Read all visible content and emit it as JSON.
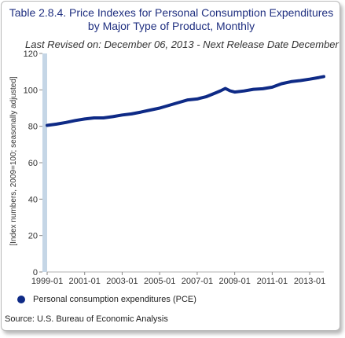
{
  "title": "Table 2.8.4. Price Indexes for Personal Consumption Expenditures by Major Type of Product, Monthly",
  "subtitle": "Last Revised on: December 06, 2013 - Next Release Date December",
  "source": "Source: U.S. Bureau of Economic Analysis",
  "colors": {
    "series": "#0e2a86",
    "axis_band": "#c5d6e6",
    "grid": "#dddddd",
    "title": "#1f2f80"
  },
  "chart_data": {
    "type": "line",
    "title": "Table 2.8.4. Price Indexes for Personal Consumption Expenditures by Major Type of Product, Monthly",
    "ylabel": "[Index numbers, 2009=100; seasonally adjusted]",
    "xlabel": "",
    "ylim": [
      0,
      120
    ],
    "xlim": [
      "1999-01",
      "2013-10"
    ],
    "yticks": [
      "0",
      "20",
      "40",
      "60",
      "80",
      "100",
      "120"
    ],
    "xticks": [
      "1999-01",
      "2001-01",
      "2003-01",
      "2005-01",
      "2007-01",
      "2009-01",
      "2011-01",
      "2013-01"
    ],
    "legend_position": "bottom-left",
    "grid": false,
    "series": [
      {
        "name": "Personal consumption expenditures (PCE)",
        "x": [
          "1999-01",
          "1999-07",
          "2000-01",
          "2000-07",
          "2001-01",
          "2001-07",
          "2002-01",
          "2002-07",
          "2003-01",
          "2003-07",
          "2004-01",
          "2004-07",
          "2005-01",
          "2005-07",
          "2006-01",
          "2006-07",
          "2007-01",
          "2007-07",
          "2008-01",
          "2008-04",
          "2008-07",
          "2008-10",
          "2009-01",
          "2009-07",
          "2010-01",
          "2010-07",
          "2011-01",
          "2011-07",
          "2012-01",
          "2012-07",
          "2013-01",
          "2013-07",
          "2013-10"
        ],
        "values": [
          80.5,
          81.2,
          82.1,
          83.2,
          84.0,
          84.6,
          84.6,
          85.3,
          86.2,
          86.8,
          87.8,
          88.9,
          90.0,
          91.5,
          93.0,
          94.5,
          95.0,
          96.3,
          98.4,
          99.5,
          100.8,
          99.5,
          98.8,
          99.4,
          100.3,
          100.6,
          101.5,
          103.4,
          104.5,
          105.1,
          105.9,
          106.8,
          107.3
        ]
      }
    ]
  }
}
